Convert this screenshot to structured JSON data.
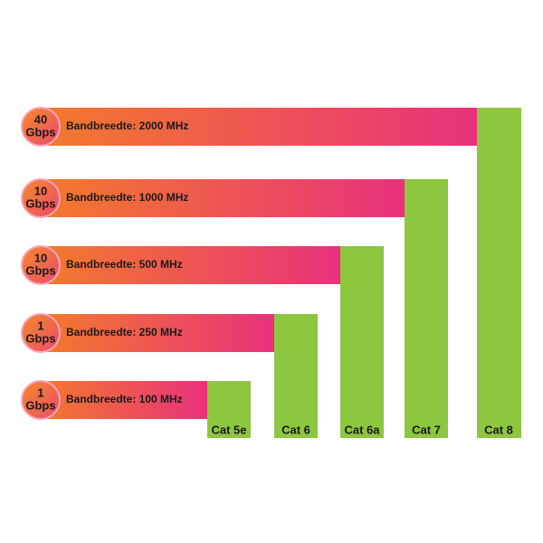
{
  "items": [
    {
      "category": "Cat 5e",
      "speed_value": "1",
      "speed_unit": "Gbps",
      "bandwidth": "Bandbreedte: 100 MHz"
    },
    {
      "category": "Cat 6",
      "speed_value": "1",
      "speed_unit": "Gbps",
      "bandwidth": "Bandbreedte: 250 MHz"
    },
    {
      "category": "Cat 6a",
      "speed_value": "10",
      "speed_unit": "Gbps",
      "bandwidth": "Bandbreedte: 500 MHz"
    },
    {
      "category": "Cat 7",
      "speed_value": "10",
      "speed_unit": "Gbps",
      "bandwidth": "Bandbreedte: 1000 MHz"
    },
    {
      "category": "Cat 8",
      "speed_value": "40",
      "speed_unit": "Gbps",
      "bandwidth": "Bandbreedte: 2000 MHz"
    }
  ]
}
